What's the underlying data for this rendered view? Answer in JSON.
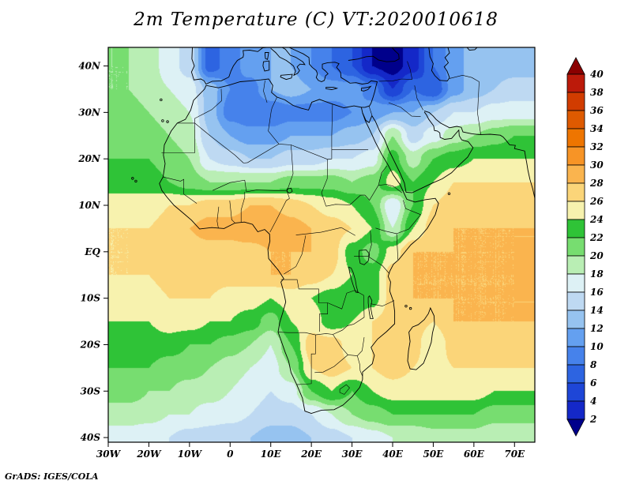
{
  "title": "2m Temperature (C) VT:2020010618",
  "attribution": "GrADS: IGES/COLA",
  "chart_data": {
    "type": "heatmap",
    "title": "2m Temperature (C) VT:2020010618",
    "variable": "2m Temperature",
    "units": "C",
    "valid_time": "2020010618",
    "legend_position": "right",
    "x_ticks": [
      {
        "label": "30W",
        "lon": -30
      },
      {
        "label": "20W",
        "lon": -20
      },
      {
        "label": "10W",
        "lon": -10
      },
      {
        "label": "0",
        "lon": 0
      },
      {
        "label": "10E",
        "lon": 10
      },
      {
        "label": "20E",
        "lon": 20
      },
      {
        "label": "30E",
        "lon": 30
      },
      {
        "label": "40E",
        "lon": 40
      },
      {
        "label": "50E",
        "lon": 50
      },
      {
        "label": "60E",
        "lon": 60
      },
      {
        "label": "70E",
        "lon": 70
      }
    ],
    "y_ticks": [
      {
        "label": "40N",
        "lat": 40
      },
      {
        "label": "30N",
        "lat": 30
      },
      {
        "label": "20N",
        "lat": 20
      },
      {
        "label": "10N",
        "lat": 10
      },
      {
        "label": "EQ",
        "lat": 0
      },
      {
        "label": "10S",
        "lat": -10
      },
      {
        "label": "20S",
        "lat": -20
      },
      {
        "label": "30S",
        "lat": -30
      },
      {
        "label": "40S",
        "lat": -40
      }
    ],
    "lon_range": [
      -30,
      75
    ],
    "lat_range": [
      -41,
      44
    ],
    "levels": [
      2,
      4,
      6,
      8,
      10,
      12,
      14,
      16,
      18,
      20,
      22,
      24,
      26,
      28,
      30,
      32,
      34,
      36,
      38,
      40
    ],
    "palette": [
      "#00008b",
      "#1428c8",
      "#1e46d7",
      "#2d64e1",
      "#4682eb",
      "#64a0f0",
      "#96c3f0",
      "#bed9f2",
      "#ddf1f5",
      "#b9eeb4",
      "#77dd70",
      "#2fc337",
      "#f7f2ae",
      "#fbd579",
      "#fab44e",
      "#f79426",
      "#ee7500",
      "#de5a00",
      "#d13c00",
      "#bc1a0a",
      "#8b0000"
    ],
    "grid": {
      "lon_start": -30,
      "lon_step": 5,
      "lat_start": 40,
      "lat_step": -5,
      "rows": [
        [
          20,
          20,
          19,
          17,
          15,
          7,
          9,
          11,
          12,
          12,
          10,
          8,
          6,
          2,
          1,
          3,
          8,
          11,
          13,
          13,
          13
        ],
        [
          20,
          20,
          19,
          18,
          17,
          13,
          10,
          9,
          12,
          13,
          12,
          11,
          11,
          9,
          4,
          8,
          6,
          11,
          13,
          14,
          15
        ],
        [
          21,
          21,
          20,
          19,
          18,
          13,
          9,
          8,
          8,
          9,
          9,
          9,
          10,
          11,
          12,
          12,
          14,
          16,
          16,
          17,
          17
        ],
        [
          21,
          21,
          21,
          20,
          19,
          14,
          12,
          11,
          11,
          12,
          12,
          12,
          13,
          14,
          20,
          15,
          17,
          19,
          20,
          21,
          22
        ],
        [
          22,
          22,
          22,
          21,
          20,
          16,
          15,
          14,
          14,
          15,
          15,
          16,
          16,
          17,
          23,
          19,
          22,
          23,
          24,
          24,
          24
        ],
        [
          23,
          23,
          23,
          22,
          21,
          20,
          20,
          20,
          20,
          21,
          21,
          21,
          20,
          21,
          25,
          22,
          24,
          26,
          26,
          26,
          26
        ],
        [
          25,
          25,
          25,
          26,
          26,
          27,
          27,
          28,
          28,
          27,
          26,
          25,
          24,
          22,
          16,
          22,
          26,
          27,
          27,
          27,
          27
        ],
        [
          26,
          26,
          26,
          27,
          28,
          29,
          29,
          30,
          30,
          29,
          28,
          27,
          26,
          24,
          18,
          24,
          27,
          28,
          28,
          28,
          28
        ],
        [
          26,
          26,
          27,
          27,
          27,
          27,
          27,
          27,
          28,
          28,
          28,
          27,
          23,
          21,
          25,
          28,
          28,
          28,
          28,
          28,
          28
        ],
        [
          26,
          26,
          26,
          27,
          27,
          27,
          27,
          27,
          28,
          28,
          27,
          26,
          24,
          23,
          27,
          28,
          28,
          28,
          28,
          28,
          28
        ],
        [
          25,
          25,
          25,
          26,
          26,
          26,
          25,
          25,
          24,
          25,
          24,
          23,
          22,
          23,
          27,
          28,
          28,
          28,
          28,
          28,
          28
        ],
        [
          24,
          24,
          24,
          25,
          25,
          24,
          24,
          23,
          21,
          24,
          25,
          23,
          24,
          26,
          27,
          27,
          26,
          28,
          28,
          28,
          28
        ],
        [
          23,
          23,
          23,
          23,
          22,
          22,
          21,
          20,
          18,
          22,
          27,
          27,
          25,
          26,
          27,
          27,
          24,
          27,
          27,
          27,
          27
        ],
        [
          22,
          22,
          22,
          21,
          21,
          20,
          19,
          18,
          17,
          20,
          26,
          27,
          26,
          26,
          27,
          26,
          25,
          26,
          26,
          26,
          26
        ],
        [
          21,
          21,
          20,
          20,
          19,
          19,
          18,
          17,
          16,
          17,
          22,
          24,
          22,
          24,
          25,
          25,
          25,
          25,
          25,
          24,
          24
        ],
        [
          19,
          19,
          19,
          18,
          18,
          17,
          17,
          16,
          15,
          15,
          16,
          18,
          20,
          21,
          22,
          22,
          22,
          22,
          22,
          21,
          21
        ],
        [
          17,
          17,
          16,
          16,
          15,
          15,
          14,
          14,
          13,
          13,
          14,
          15,
          16,
          17,
          18,
          18,
          19,
          19,
          19,
          18,
          18
        ]
      ]
    },
    "colorbar_labels": [
      "40",
      "38",
      "36",
      "34",
      "32",
      "30",
      "28",
      "26",
      "24",
      "22",
      "20",
      "18",
      "16",
      "14",
      "12",
      "10",
      "8",
      "6",
      "4",
      "2"
    ]
  }
}
